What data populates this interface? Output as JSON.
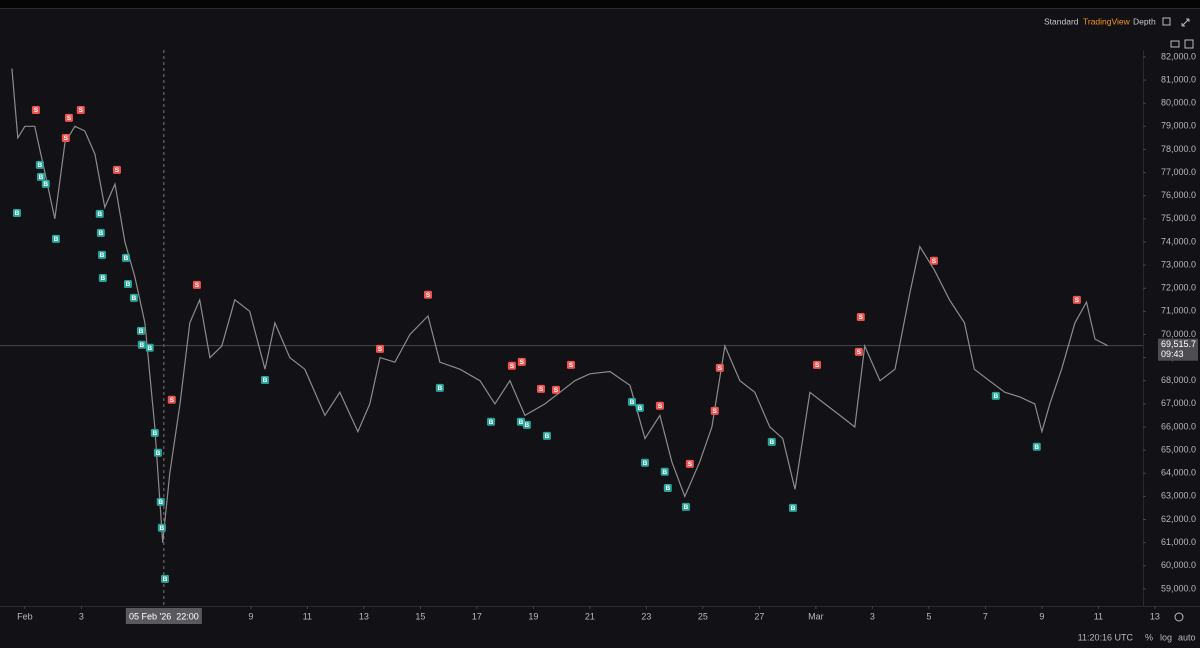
{
  "toolbar": {
    "tabs": [
      "Standard",
      "TradingView",
      "Depth"
    ]
  },
  "chart_data": {
    "type": "line",
    "color": "#8c8c8c",
    "x": [
      0.54,
      0.75,
      1.0,
      1.35,
      1.71,
      2.06,
      2.42,
      2.77,
      3.12,
      3.48,
      3.83,
      4.19,
      4.54,
      4.89,
      5.25,
      5.6,
      5.88,
      6.13,
      6.49,
      6.84,
      7.19,
      7.55,
      7.97,
      8.43,
      8.96,
      9.5,
      9.85,
      10.38,
      10.91,
      11.62,
      12.15,
      12.79,
      13.21,
      13.57,
      14.1,
      14.63,
      15.27,
      15.69,
      16.4,
      17.11,
      17.64,
      18.17,
      18.7,
      19.41,
      19.94,
      20.47,
      21.0,
      21.71,
      22.42,
      22.95,
      23.48,
      23.9,
      24.36,
      24.89,
      25.32,
      25.78,
      26.31,
      26.84,
      27.37,
      27.83,
      28.26,
      28.79,
      29.32,
      29.85,
      30.38,
      30.73,
      31.27,
      31.8,
      32.33,
      32.68,
      33.19,
      33.73,
      34.26,
      34.61,
      35.14,
      35.69,
      36.22,
      36.75,
      37.0,
      37.28,
      37.7,
      38.17,
      38.58,
      38.88,
      39.33
    ],
    "values": [
      81500,
      78500,
      79000,
      79000,
      77000,
      75000,
      78300,
      79000,
      78800,
      77800,
      75500,
      76500,
      74000,
      72500,
      70500,
      66000,
      61000,
      64000,
      67000,
      70500,
      71500,
      69000,
      69500,
      71500,
      71000,
      68500,
      70500,
      69000,
      68500,
      66500,
      67500,
      65800,
      67000,
      69000,
      68800,
      70000,
      70800,
      68800,
      68500,
      68000,
      67000,
      68000,
      66500,
      67000,
      67500,
      68000,
      68300,
      68400,
      67800,
      65500,
      66500,
      64500,
      63000,
      64500,
      66000,
      69500,
      68000,
      67500,
      66000,
      65500,
      63300,
      67500,
      67000,
      66500,
      66000,
      69500,
      68000,
      68500,
      71800,
      73800,
      72800,
      71500,
      70500,
      68500,
      68000,
      67500,
      67300,
      67000,
      65800,
      67000,
      68500,
      70500,
      71400,
      69800,
      69515.7
    ],
    "buy_signals": {
      "label": "B",
      "color": "#26a69a",
      "x": [
        0.72,
        1.53,
        1.57,
        1.74,
        2.1,
        3.65,
        3.69,
        3.73,
        3.76,
        4.58,
        4.65,
        4.86,
        5.11,
        5.14,
        5.42,
        5.6,
        5.71,
        5.81,
        5.85,
        5.96,
        9.5,
        15.69,
        17.5,
        18.56,
        18.77,
        19.48,
        22.49,
        22.77,
        22.95,
        23.65,
        23.76,
        24.4,
        27.44,
        28.19,
        35.37,
        36.82
      ],
      "values": [
        75470,
        77550,
        77030,
        76730,
        74350,
        75430,
        74610,
        73660,
        72660,
        73530,
        72400,
        71800,
        70370,
        69770,
        69640,
        65960,
        65100,
        62980,
        61860,
        59650,
        68250,
        67910,
        66440,
        66440,
        66310,
        65830,
        67300,
        67040,
        64670,
        64280,
        63580,
        62760,
        65570,
        62720,
        67560,
        65360
      ]
    },
    "sell_signals": {
      "label": "S",
      "color": "#ef5350",
      "x": [
        1.39,
        2.45,
        2.56,
        2.98,
        4.26,
        6.2,
        7.09,
        13.57,
        15.27,
        18.24,
        18.59,
        19.27,
        19.8,
        20.33,
        23.48,
        24.54,
        25.42,
        25.6,
        29.04,
        30.52,
        30.59,
        33.18,
        38.24
      ],
      "values": [
        79490,
        78280,
        79150,
        79490,
        76900,
        66960,
        71930,
        69160,
        71500,
        68430,
        68600,
        67430,
        67390,
        68470,
        66700,
        64190,
        66480,
        68340,
        68470,
        69030,
        70540,
        72970,
        71280
      ]
    },
    "xlim": [
      0.12,
      40.58
    ],
    "xticks": [
      {
        "value": 1,
        "label": "Feb"
      },
      3,
      9,
      11,
      13,
      15,
      17,
      19,
      21,
      23,
      25,
      27,
      {
        "value": 29,
        "label": "Mar"
      },
      {
        "value": 31,
        "label": "3"
      },
      {
        "value": 33,
        "label": "5"
      },
      {
        "value": 35,
        "label": "7"
      },
      {
        "value": 37,
        "label": "9"
      },
      {
        "value": 39,
        "label": "11"
      },
      {
        "value": 41,
        "label": "13"
      }
    ],
    "ylim": [
      58260,
      82300
    ],
    "yticks": [
      {
        "value": 59000,
        "label": "59,000.0"
      },
      {
        "value": 60000,
        "label": "60,000.0"
      },
      {
        "value": 61000,
        "label": "61,000.0"
      },
      {
        "value": 62000,
        "label": "62,000.0"
      },
      {
        "value": 63000,
        "label": "63,000.0"
      },
      {
        "value": 64000,
        "label": "64,000.0"
      },
      {
        "value": 65000,
        "label": "65,000.0"
      },
      {
        "value": 66000,
        "label": "66,000.0"
      },
      {
        "value": 67000,
        "label": "67,000.0"
      },
      {
        "value": 68000,
        "label": "68,000.0"
      },
      {
        "value": 69000,
        "label": "69,000.0"
      },
      {
        "value": 70000,
        "label": "70,000.0"
      },
      {
        "value": 71000,
        "label": "71,000.0"
      },
      {
        "value": 72000,
        "label": "72,000.0"
      },
      {
        "value": 73000,
        "label": "73,000.0"
      },
      {
        "value": 74000,
        "label": "74,000.0"
      },
      {
        "value": 75000,
        "label": "75,000.0"
      },
      {
        "value": 76000,
        "label": "76,000.0"
      },
      {
        "value": 77000,
        "label": "77,000.0"
      },
      {
        "value": 78000,
        "label": "78,000.0"
      },
      {
        "value": 79000,
        "label": "79,000.0"
      },
      {
        "value": 80000,
        "label": "80,000.0"
      },
      {
        "value": 81000,
        "label": "81,000.0"
      },
      {
        "value": 82000,
        "label": "82,000.0"
      }
    ],
    "last_price": {
      "value": 69515.7,
      "label": "69,515.7",
      "countdown": "09:43"
    },
    "crosshair": {
      "x": 5.92,
      "label": "05 Feb '26  22:00"
    }
  },
  "footer": {
    "time": "11:20:16 UTC",
    "options": [
      "%",
      "log",
      "auto"
    ]
  }
}
